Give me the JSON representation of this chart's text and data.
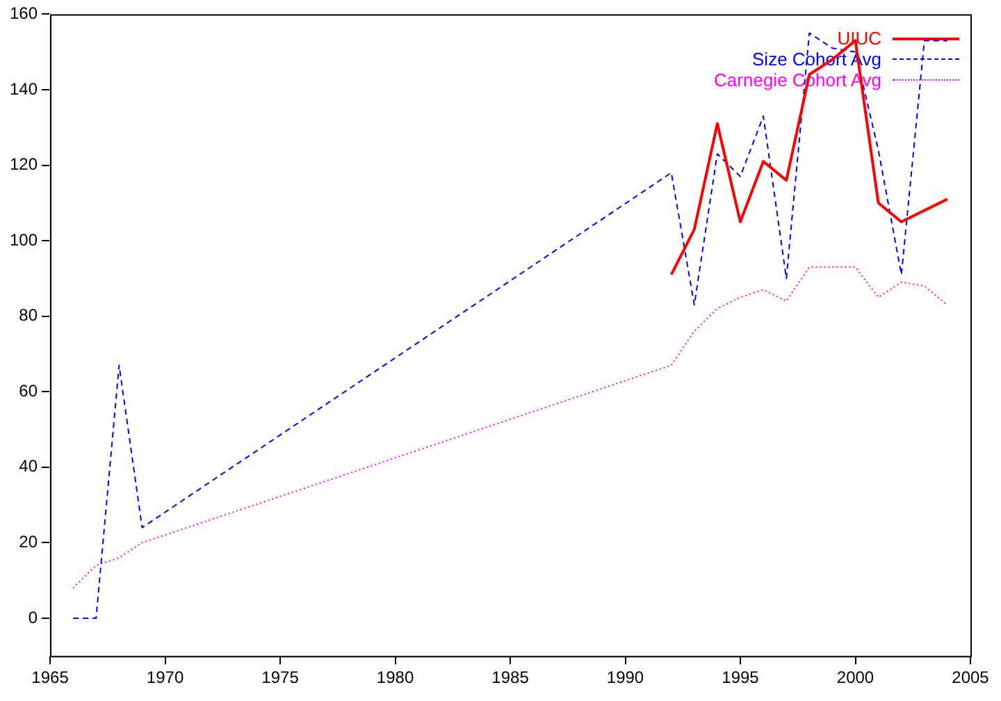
{
  "chart_data": {
    "type": "line",
    "xlim": [
      1965,
      2005
    ],
    "xticks": [
      1965,
      1970,
      1975,
      1980,
      1985,
      1990,
      1995,
      2000,
      2005
    ],
    "ylim": [
      -10,
      160
    ],
    "yticks": [
      0,
      20,
      40,
      60,
      80,
      100,
      120,
      140,
      160
    ],
    "grid": false,
    "legend": "top right",
    "marker": "none",
    "series": [
      {
        "name": "UIUC",
        "color": "#ff0000",
        "line_style": "solid",
        "x": [
          1992,
          1993,
          1994,
          1995,
          1996,
          1997,
          1998,
          1999,
          2000,
          2001,
          2002,
          2003,
          2004
        ],
        "values": [
          91,
          103,
          131,
          105,
          121,
          116,
          144,
          148,
          153,
          110,
          105,
          108,
          111
        ]
      },
      {
        "name": "Size Cohort Avg",
        "color": "#0000ff",
        "line_style": "dashed",
        "x": [
          1966,
          1967,
          1968,
          1969,
          1992,
          1993,
          1994,
          1995,
          1996,
          1997,
          1998,
          1999,
          2000,
          2001,
          2002,
          2003,
          2004
        ],
        "values": [
          0,
          0,
          67,
          24,
          118,
          83,
          123,
          117,
          133,
          90,
          155,
          151,
          150,
          124,
          91,
          153,
          153
        ]
      },
      {
        "name": "Carnegie Cohort Avg",
        "color": "#ff00ff",
        "line_style": "dotted",
        "x": [
          1966,
          1967,
          1968,
          1969,
          1992,
          1993,
          1994,
          1995,
          1996,
          1997,
          1998,
          1999,
          2000,
          2001,
          2002,
          2003,
          2004
        ],
        "values": [
          8,
          14,
          16,
          20,
          67,
          76,
          82,
          85,
          87,
          84,
          93,
          93,
          93,
          85,
          89,
          88,
          83
        ]
      }
    ]
  }
}
